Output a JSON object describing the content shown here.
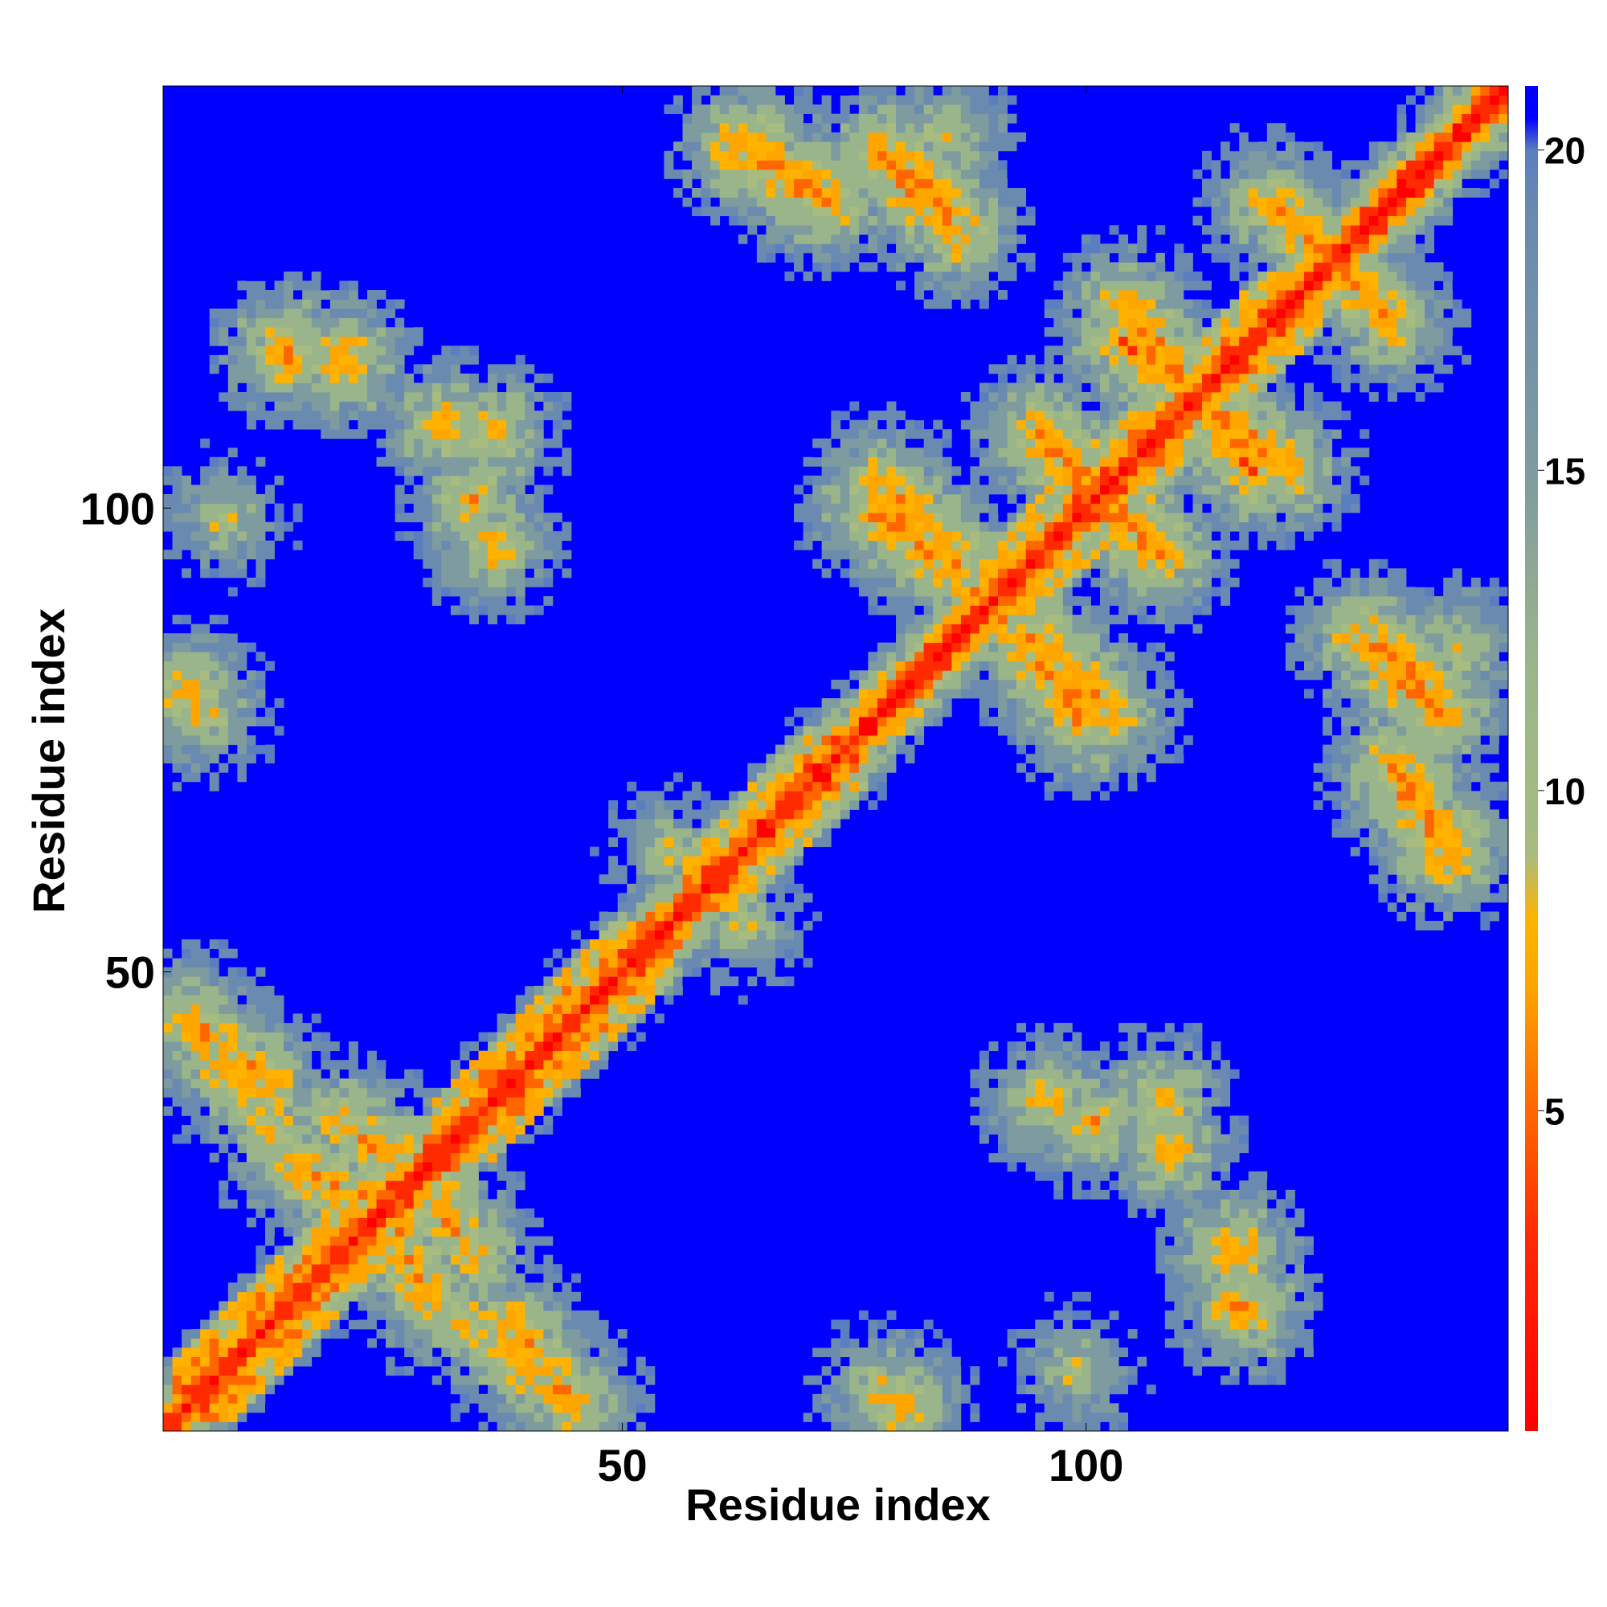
{
  "chart_data": {
    "type": "heatmap",
    "title": "",
    "xlabel": "Residue index",
    "ylabel": "Residue index",
    "n_residues": 145,
    "xlim": [
      1,
      145
    ],
    "ylim": [
      1,
      145
    ],
    "x_ticks": [
      50,
      100
    ],
    "y_ticks": [
      50,
      100
    ],
    "grid": false,
    "colorbar": {
      "position": "right",
      "range": [
        0,
        21
      ],
      "ticks": [
        5,
        10,
        15,
        20
      ],
      "stops": [
        {
          "value": 0,
          "color": "#ff0000"
        },
        {
          "value": 3,
          "color": "#ff2a00"
        },
        {
          "value": 5,
          "color": "#ff6600"
        },
        {
          "value": 7,
          "color": "#ffa500"
        },
        {
          "value": 8,
          "color": "#ffb300"
        },
        {
          "value": 9,
          "color": "#a8bc80"
        },
        {
          "value": 12,
          "color": "#9ab58a"
        },
        {
          "value": 15,
          "color": "#7e9ba0"
        },
        {
          "value": 19,
          "color": "#6a8ab0"
        },
        {
          "value": 20,
          "color": "#5a7ec0"
        },
        {
          "value": 20.5,
          "color": "#0000ff"
        },
        {
          "value": 21,
          "color": "#0000ff"
        }
      ]
    },
    "pattern": {
      "diagonal_distance": 0,
      "off_diagonal_step": 2.4,
      "background_distance": 21,
      "helix_blocks": [
        {
          "x": [
            2,
            28
          ],
          "y": [
            2,
            28
          ],
          "value": 6
        },
        {
          "x": [
            30,
            55
          ],
          "y": [
            30,
            55
          ],
          "value": 6
        },
        {
          "x": [
            57,
            76
          ],
          "y": [
            57,
            76
          ],
          "value": 7
        },
        {
          "x": [
            86,
            125
          ],
          "y": [
            86,
            125
          ],
          "value": 7
        }
      ],
      "contact_lines": [
        {
          "start": [
            63,
            139
          ],
          "end": [
            72,
            133
          ],
          "value": 5
        },
        {
          "start": [
            78,
            138
          ],
          "end": [
            86,
            130
          ],
          "value": 5
        },
        {
          "start": [
            77,
            100
          ],
          "end": [
            85,
            94
          ],
          "value": 5
        },
        {
          "start": [
            95,
            86
          ],
          "end": [
            103,
            78
          ],
          "value": 6
        },
        {
          "start": [
            104,
            118
          ],
          "end": [
            114,
            110
          ],
          "value": 5
        },
        {
          "start": [
            97,
            106
          ],
          "end": [
            108,
            95
          ],
          "value": 5
        },
        {
          "start": [
            113,
            112
          ],
          "end": [
            122,
            104
          ],
          "value": 6
        },
        {
          "start": [
            125,
            128
          ],
          "end": [
            133,
            120
          ],
          "value": 6
        },
        {
          "start": [
            130,
            86
          ],
          "end": [
            138,
            79
          ],
          "value": 5
        },
        {
          "start": [
            134,
            70
          ],
          "end": [
            140,
            64
          ],
          "value": 6
        },
        {
          "start": [
            3,
            45
          ],
          "end": [
            12,
            38
          ],
          "value": 6
        },
        {
          "start": [
            15,
            29
          ],
          "end": [
            25,
            23
          ],
          "value": 6
        },
        {
          "start": [
            26,
            30
          ],
          "end": [
            34,
            20
          ],
          "value": 6
        },
        {
          "start": [
            32,
            13
          ],
          "end": [
            43,
            4
          ],
          "value": 7
        }
      ],
      "contact_spots": [
        {
          "x": 14,
          "y": 117,
          "value": 5
        },
        {
          "x": 31,
          "y": 109,
          "value": 6
        },
        {
          "x": 34,
          "y": 101,
          "value": 6
        },
        {
          "x": 3,
          "y": 80,
          "value": 6
        },
        {
          "x": 85,
          "y": 140,
          "value": 7
        },
        {
          "x": 96,
          "y": 36,
          "value": 6
        },
        {
          "x": 108,
          "y": 36,
          "value": 6
        },
        {
          "x": 116,
          "y": 20,
          "value": 5
        },
        {
          "x": 78,
          "y": 5,
          "value": 7
        },
        {
          "x": 99,
          "y": 7,
          "value": 8
        },
        {
          "x": 63,
          "y": 55,
          "value": 8
        }
      ]
    }
  }
}
